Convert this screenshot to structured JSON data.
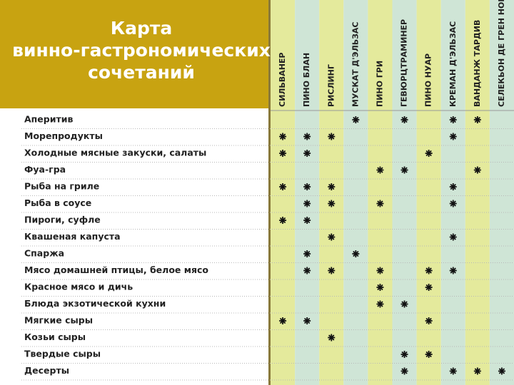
{
  "header": {
    "title": [
      "Карта",
      "винно-гастрономических",
      "сочетаний"
    ]
  },
  "table": {
    "columns": [
      "СИЛЬВАНЕР",
      "ПИНО БЛАН",
      "РИСЛИНГ",
      "МУСКАТ Д'ЭЛЬЗАС",
      "ПИНО ГРИ",
      "ГЕВЮРЦТРАМИНЕР",
      "ПИНО НУАР",
      "КРЕМАН Д'ЭЛЬЗАС",
      "ВАНДАНЖ ТАРДИВ",
      "СЕЛЕКЬОН ДЕ ГРЕН НОБЛЬ"
    ],
    "rows": [
      {
        "label": "Аперитив",
        "cells": [
          false,
          false,
          false,
          true,
          false,
          true,
          false,
          true,
          true,
          false
        ]
      },
      {
        "label": "Морепродукты",
        "cells": [
          true,
          true,
          true,
          false,
          false,
          false,
          false,
          true,
          false,
          false
        ]
      },
      {
        "label": "Холодные мясные закуски, салаты",
        "cells": [
          true,
          true,
          false,
          false,
          false,
          false,
          true,
          false,
          false,
          false
        ]
      },
      {
        "label": "Фуа-гра",
        "cells": [
          false,
          false,
          false,
          false,
          true,
          true,
          false,
          false,
          true,
          false
        ]
      },
      {
        "label": "Рыба на гриле",
        "cells": [
          true,
          true,
          true,
          false,
          false,
          false,
          false,
          true,
          false,
          false
        ]
      },
      {
        "label": "Рыба в соусе",
        "cells": [
          false,
          true,
          true,
          false,
          true,
          false,
          false,
          true,
          false,
          false
        ]
      },
      {
        "label": "Пироги, суфле",
        "cells": [
          true,
          true,
          false,
          false,
          false,
          false,
          false,
          false,
          false,
          false
        ]
      },
      {
        "label": "Квашеная капуста",
        "cells": [
          false,
          false,
          true,
          false,
          false,
          false,
          false,
          true,
          false,
          false
        ]
      },
      {
        "label": "Спаржа",
        "cells": [
          false,
          true,
          false,
          true,
          false,
          false,
          false,
          false,
          false,
          false
        ]
      },
      {
        "label": "Мясо домашней птицы, белое мясо",
        "cells": [
          false,
          true,
          true,
          false,
          true,
          false,
          true,
          true,
          false,
          false
        ]
      },
      {
        "label": "Красное мясо и дичь",
        "cells": [
          false,
          false,
          false,
          false,
          true,
          false,
          true,
          false,
          false,
          false
        ]
      },
      {
        "label": "Блюда экзотической кухни",
        "cells": [
          false,
          false,
          false,
          false,
          true,
          true,
          false,
          false,
          false,
          false
        ]
      },
      {
        "label": "Мягкие сыры",
        "cells": [
          true,
          true,
          false,
          false,
          false,
          false,
          true,
          false,
          false,
          false
        ]
      },
      {
        "label": "Козьи сыры",
        "cells": [
          false,
          false,
          true,
          false,
          false,
          false,
          false,
          false,
          false,
          false
        ]
      },
      {
        "label": "Твердые сыры",
        "cells": [
          false,
          false,
          false,
          false,
          false,
          true,
          true,
          false,
          false,
          false
        ]
      },
      {
        "label": "Десерты",
        "cells": [
          false,
          false,
          false,
          false,
          false,
          true,
          false,
          true,
          true,
          true
        ]
      }
    ]
  }
}
